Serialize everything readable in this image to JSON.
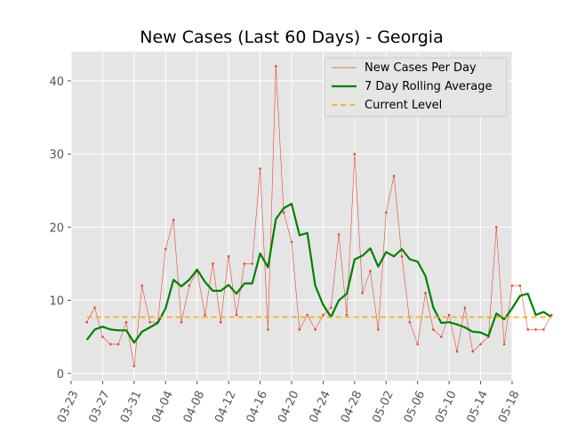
{
  "chart_data": {
    "type": "line",
    "title": "New Cases (Last 60 Days) - Georgia",
    "xlabel": "",
    "ylabel": "",
    "x_ticks": [
      "03-23",
      "03-27",
      "03-31",
      "04-04",
      "04-08",
      "04-12",
      "04-16",
      "04-20",
      "04-24",
      "04-28",
      "05-02",
      "05-06",
      "05-10",
      "05-14",
      "05-18"
    ],
    "y_ticks": [
      0,
      10,
      20,
      30,
      40
    ],
    "ylim": [
      -1,
      44
    ],
    "x_range_days": [
      0,
      56
    ],
    "grid": true,
    "legend_position": "top-right",
    "colors": {
      "daily": "#e24a33",
      "rolling": "#008000",
      "level": "#ffa500",
      "plot_bg": "#e5e5e5",
      "grid": "#ffffff"
    },
    "series": [
      {
        "name": "New Cases Per Day",
        "style": "thin-line-with-markers",
        "x": [
          "03-25",
          "03-26",
          "03-27",
          "03-28",
          "03-29",
          "03-30",
          "03-31",
          "04-01",
          "04-02",
          "04-03",
          "04-04",
          "04-05",
          "04-06",
          "04-07",
          "04-08",
          "04-09",
          "04-10",
          "04-11",
          "04-12",
          "04-13",
          "04-14",
          "04-15",
          "04-16",
          "04-17",
          "04-18",
          "04-19",
          "04-20",
          "04-21",
          "04-22",
          "04-23",
          "04-24",
          "04-25",
          "04-26",
          "04-27",
          "04-28",
          "04-29",
          "04-30",
          "05-01",
          "05-02",
          "05-03",
          "05-04",
          "05-05",
          "05-06",
          "05-07",
          "05-08",
          "05-09",
          "05-10",
          "05-11",
          "05-12",
          "05-13",
          "05-14",
          "05-15",
          "05-16",
          "05-17",
          "05-18",
          "05-19",
          "05-20",
          "05-21",
          "05-22",
          "05-23"
        ],
        "values": [
          7,
          9,
          5,
          4,
          4,
          7,
          1,
          12,
          7,
          7,
          17,
          21,
          7,
          12,
          14,
          8,
          15,
          7,
          16,
          8,
          15,
          15,
          28,
          6,
          42,
          22,
          18,
          6,
          8,
          6,
          8,
          9,
          19,
          8,
          30,
          11,
          14,
          6,
          22,
          27,
          16,
          7,
          4,
          11,
          6,
          5,
          8,
          3,
          9,
          3,
          4,
          5,
          20,
          4,
          12,
          12,
          6,
          6,
          6,
          8
        ]
      },
      {
        "name": "7 Day Rolling Average",
        "style": "thick-line",
        "x": [
          "03-25",
          "03-26",
          "03-27",
          "03-28",
          "03-29",
          "03-30",
          "03-31",
          "04-01",
          "04-02",
          "04-03",
          "04-04",
          "04-05",
          "04-06",
          "04-07",
          "04-08",
          "04-09",
          "04-10",
          "04-11",
          "04-12",
          "04-13",
          "04-14",
          "04-15",
          "04-16",
          "04-17",
          "04-18",
          "04-19",
          "04-20",
          "04-21",
          "04-22",
          "04-23",
          "04-24",
          "04-25",
          "04-26",
          "04-27",
          "04-28",
          "04-29",
          "04-30",
          "05-01",
          "05-02",
          "05-03",
          "05-04",
          "05-05",
          "05-06",
          "05-07",
          "05-08",
          "05-09",
          "05-10",
          "05-11",
          "05-12",
          "05-13",
          "05-14",
          "05-15",
          "05-16",
          "05-17",
          "05-18",
          "05-19",
          "05-20",
          "05-21",
          "05-22",
          "05-23"
        ],
        "values": [
          4.6,
          6.0,
          6.4,
          6.0,
          5.9,
          5.9,
          4.2,
          5.7,
          6.3,
          6.9,
          8.9,
          12.8,
          11.9,
          12.8,
          14.2,
          12.5,
          11.3,
          11.3,
          12.1,
          10.9,
          12.3,
          12.3,
          16.4,
          14.5,
          21.1,
          22.6,
          23.2,
          18.9,
          19.2,
          12.0,
          9.4,
          7.7,
          10.0,
          10.9,
          15.6,
          16.1,
          17.1,
          14.6,
          16.6,
          16.0,
          17.0,
          15.6,
          15.3,
          13.3,
          9.0,
          6.9,
          7.0,
          6.7,
          6.3,
          5.7,
          5.6,
          5.1,
          8.2,
          7.4,
          8.9,
          10.6,
          10.9,
          8.0,
          8.4,
          7.7
        ]
      },
      {
        "name": "Current Level",
        "style": "dashed-line",
        "x": [
          "03-25",
          "05-23"
        ],
        "values": [
          7.7,
          7.7
        ]
      }
    ]
  }
}
